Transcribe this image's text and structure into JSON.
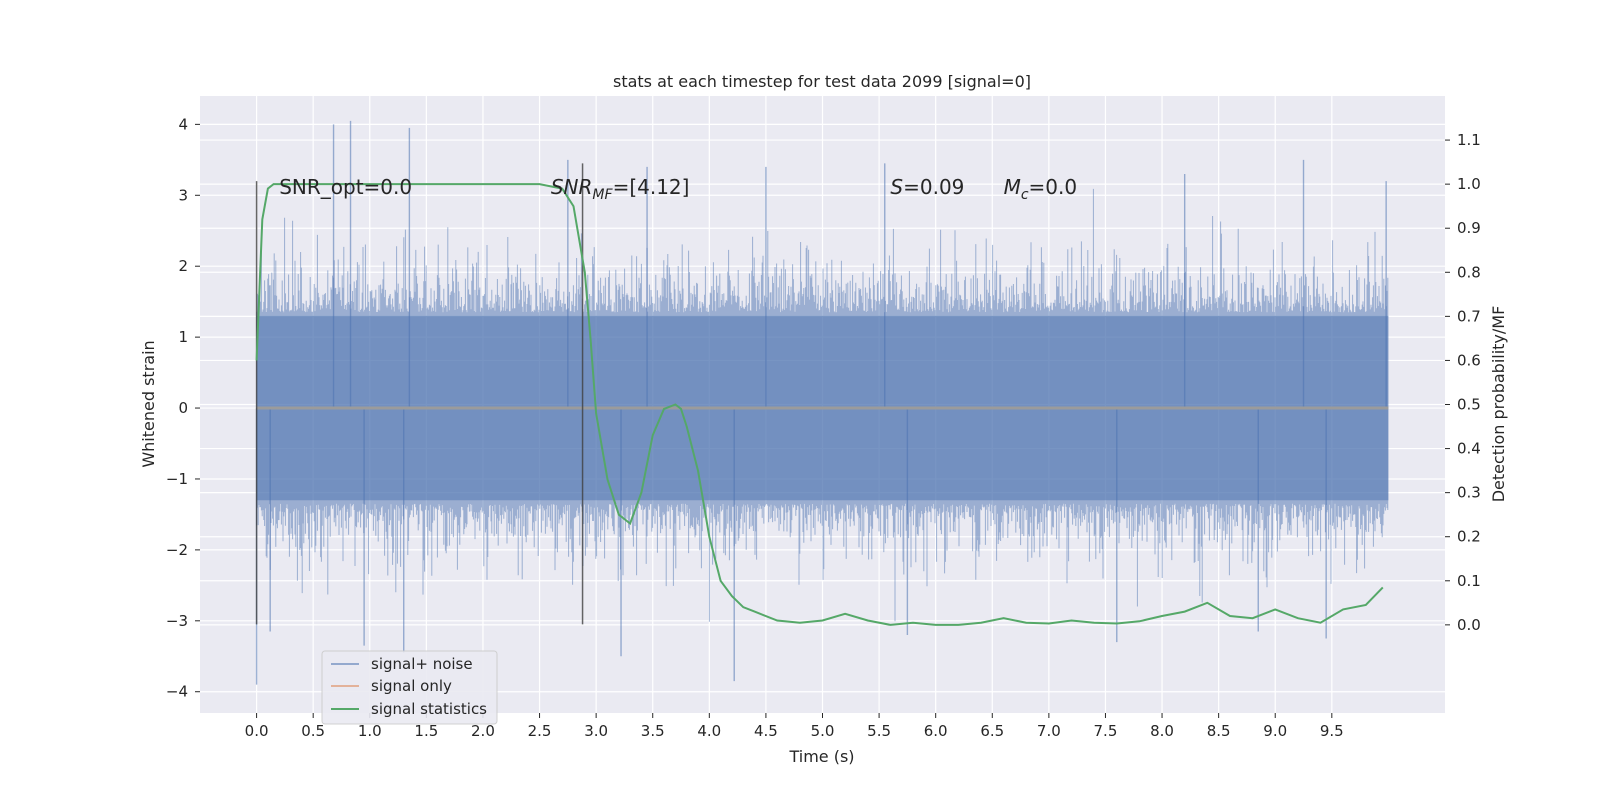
{
  "chart_data": {
    "type": "line",
    "title": "stats at each timestep for test data 2099 [signal=0]",
    "xlabel": "Time (s)",
    "ylabel": "Whitened strain",
    "y2label": "Detection probability/MF",
    "xlim": [
      -0.5,
      10.5
    ],
    "ylim": [
      -4.3,
      4.4
    ],
    "y2lim": [
      -0.2,
      1.2
    ],
    "xticks": [
      "0.0",
      "0.5",
      "1.0",
      "1.5",
      "2.0",
      "2.5",
      "3.0",
      "3.5",
      "4.0",
      "4.5",
      "5.0",
      "5.5",
      "6.0",
      "6.5",
      "7.0",
      "7.5",
      "8.0",
      "8.5",
      "9.0",
      "9.5"
    ],
    "yticks": [
      "−4",
      "−3",
      "−2",
      "−1",
      "0",
      "1",
      "2",
      "3",
      "4"
    ],
    "y2ticks": [
      "0.0",
      "0.1",
      "0.2",
      "0.3",
      "0.4",
      "0.5",
      "0.6",
      "0.7",
      "0.8",
      "0.9",
      "1.0",
      "1.1"
    ],
    "grid": true,
    "legend_position": "lower-left",
    "annotations": [
      {
        "x": 0.2,
        "y": 3.1,
        "parts": [
          {
            "t": "SNR_opt=0.0",
            "style": "normal"
          }
        ]
      },
      {
        "x": 2.6,
        "y": 3.1,
        "parts": [
          {
            "t": "SNR",
            "style": "italic"
          },
          {
            "t": "MF",
            "style": "italic-sub"
          },
          {
            "t": "=[4.12]",
            "style": "normal"
          }
        ]
      },
      {
        "x": 5.6,
        "y": 3.1,
        "parts": [
          {
            "t": "S",
            "style": "italic"
          },
          {
            "t": "=0.09",
            "style": "normal"
          }
        ]
      },
      {
        "x": 6.6,
        "y": 3.1,
        "parts": [
          {
            "t": "M",
            "style": "italic"
          },
          {
            "t": "c",
            "style": "italic-sub"
          },
          {
            "t": "=0.0",
            "style": "normal"
          }
        ]
      }
    ],
    "vlines": [
      {
        "x": 0.0,
        "ymin": -3.05,
        "ymax": 3.2
      },
      {
        "x": 2.88,
        "ymin": -3.05,
        "ymax": 3.45
      }
    ],
    "series": [
      {
        "name": "signal+ noise",
        "axis": "left",
        "color": "#4c72b0",
        "alpha": 0.5,
        "x_range": [
          0.0,
          10.0
        ],
        "envelope_description": "dense noise",
        "outliers": [
          {
            "x": 0.0,
            "y": -3.9
          },
          {
            "x": 0.12,
            "y": -3.15
          },
          {
            "x": 0.68,
            "y": 4.0
          },
          {
            "x": 0.83,
            "y": 4.05
          },
          {
            "x": 1.35,
            "y": 3.95
          },
          {
            "x": 0.95,
            "y": -3.35
          },
          {
            "x": 1.3,
            "y": -3.45
          },
          {
            "x": 2.75,
            "y": 3.5
          },
          {
            "x": 3.22,
            "y": -3.5
          },
          {
            "x": 4.22,
            "y": -3.85
          },
          {
            "x": 3.45,
            "y": 3.4
          },
          {
            "x": 5.55,
            "y": 3.45
          },
          {
            "x": 7.6,
            "y": -3.3
          },
          {
            "x": 9.25,
            "y": 3.5
          },
          {
            "x": 9.45,
            "y": -3.25
          },
          {
            "x": 4.5,
            "y": 3.4
          },
          {
            "x": 5.75,
            "y": -3.2
          },
          {
            "x": 8.2,
            "y": 3.3
          },
          {
            "x": 8.85,
            "y": -3.15
          },
          {
            "x": 9.98,
            "y": 3.2
          }
        ]
      },
      {
        "name": "signal only",
        "axis": "left",
        "color": "#dd8452",
        "x": [
          0.0,
          10.0
        ],
        "y": [
          0.0,
          0.0
        ]
      },
      {
        "name": "signal statistics",
        "axis": "right",
        "color": "#55a868",
        "x": [
          0.0,
          0.05,
          0.1,
          0.15,
          0.3,
          0.5,
          1.0,
          1.5,
          2.0,
          2.5,
          2.7,
          2.8,
          2.9,
          2.95,
          3.0,
          3.1,
          3.2,
          3.3,
          3.4,
          3.5,
          3.6,
          3.7,
          3.75,
          3.8,
          3.9,
          4.0,
          4.1,
          4.2,
          4.3,
          4.4,
          4.6,
          4.8,
          5.0,
          5.2,
          5.4,
          5.6,
          5.8,
          6.0,
          6.2,
          6.4,
          6.6,
          6.8,
          7.0,
          7.2,
          7.4,
          7.6,
          7.8,
          8.0,
          8.2,
          8.4,
          8.6,
          8.8,
          9.0,
          9.2,
          9.4,
          9.6,
          9.8,
          9.95
        ],
        "y": [
          0.6,
          0.92,
          0.99,
          1.0,
          1.0,
          1.0,
          1.0,
          1.0,
          1.0,
          1.0,
          0.99,
          0.95,
          0.8,
          0.65,
          0.48,
          0.33,
          0.25,
          0.23,
          0.3,
          0.43,
          0.49,
          0.5,
          0.49,
          0.45,
          0.35,
          0.2,
          0.1,
          0.065,
          0.04,
          0.03,
          0.01,
          0.005,
          0.01,
          0.025,
          0.01,
          0.0,
          0.005,
          0.0,
          0.0,
          0.005,
          0.015,
          0.005,
          0.003,
          0.01,
          0.005,
          0.003,
          0.008,
          0.02,
          0.03,
          0.05,
          0.02,
          0.015,
          0.035,
          0.015,
          0.005,
          0.035,
          0.045,
          0.085
        ]
      }
    ]
  }
}
